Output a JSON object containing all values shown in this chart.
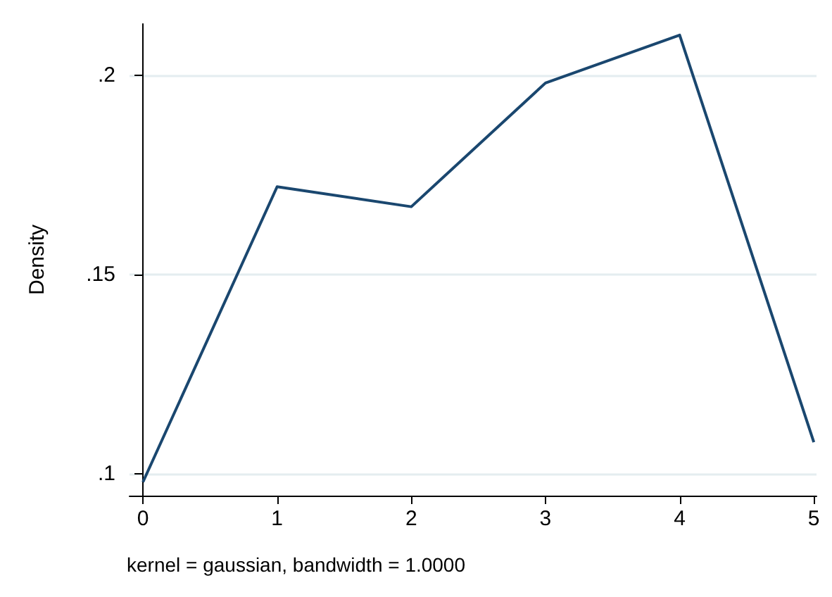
{
  "chart_data": {
    "type": "line",
    "ylabel": "Density",
    "annotations": [
      "kernel = gaussian, bandwidth = 1.0000"
    ],
    "x": [
      0,
      1,
      2,
      3,
      4,
      5
    ],
    "series": [
      {
        "color": "#1a476f",
        "values": [
          0.098,
          0.172,
          0.167,
          0.198,
          0.21,
          0.108
        ]
      }
    ],
    "xlim": [
      -0.1,
      5.02
    ],
    "xticks": [
      0,
      1,
      2,
      3,
      4,
      5
    ],
    "ylim": [
      0.0946,
      0.2128
    ],
    "yticks": [
      {
        "value": 0.1,
        "label": ".1"
      },
      {
        "value": 0.15,
        "label": ".15"
      },
      {
        "value": 0.2,
        "label": ".2"
      }
    ],
    "grid": "y",
    "marker": "none",
    "line_style": "solid"
  }
}
